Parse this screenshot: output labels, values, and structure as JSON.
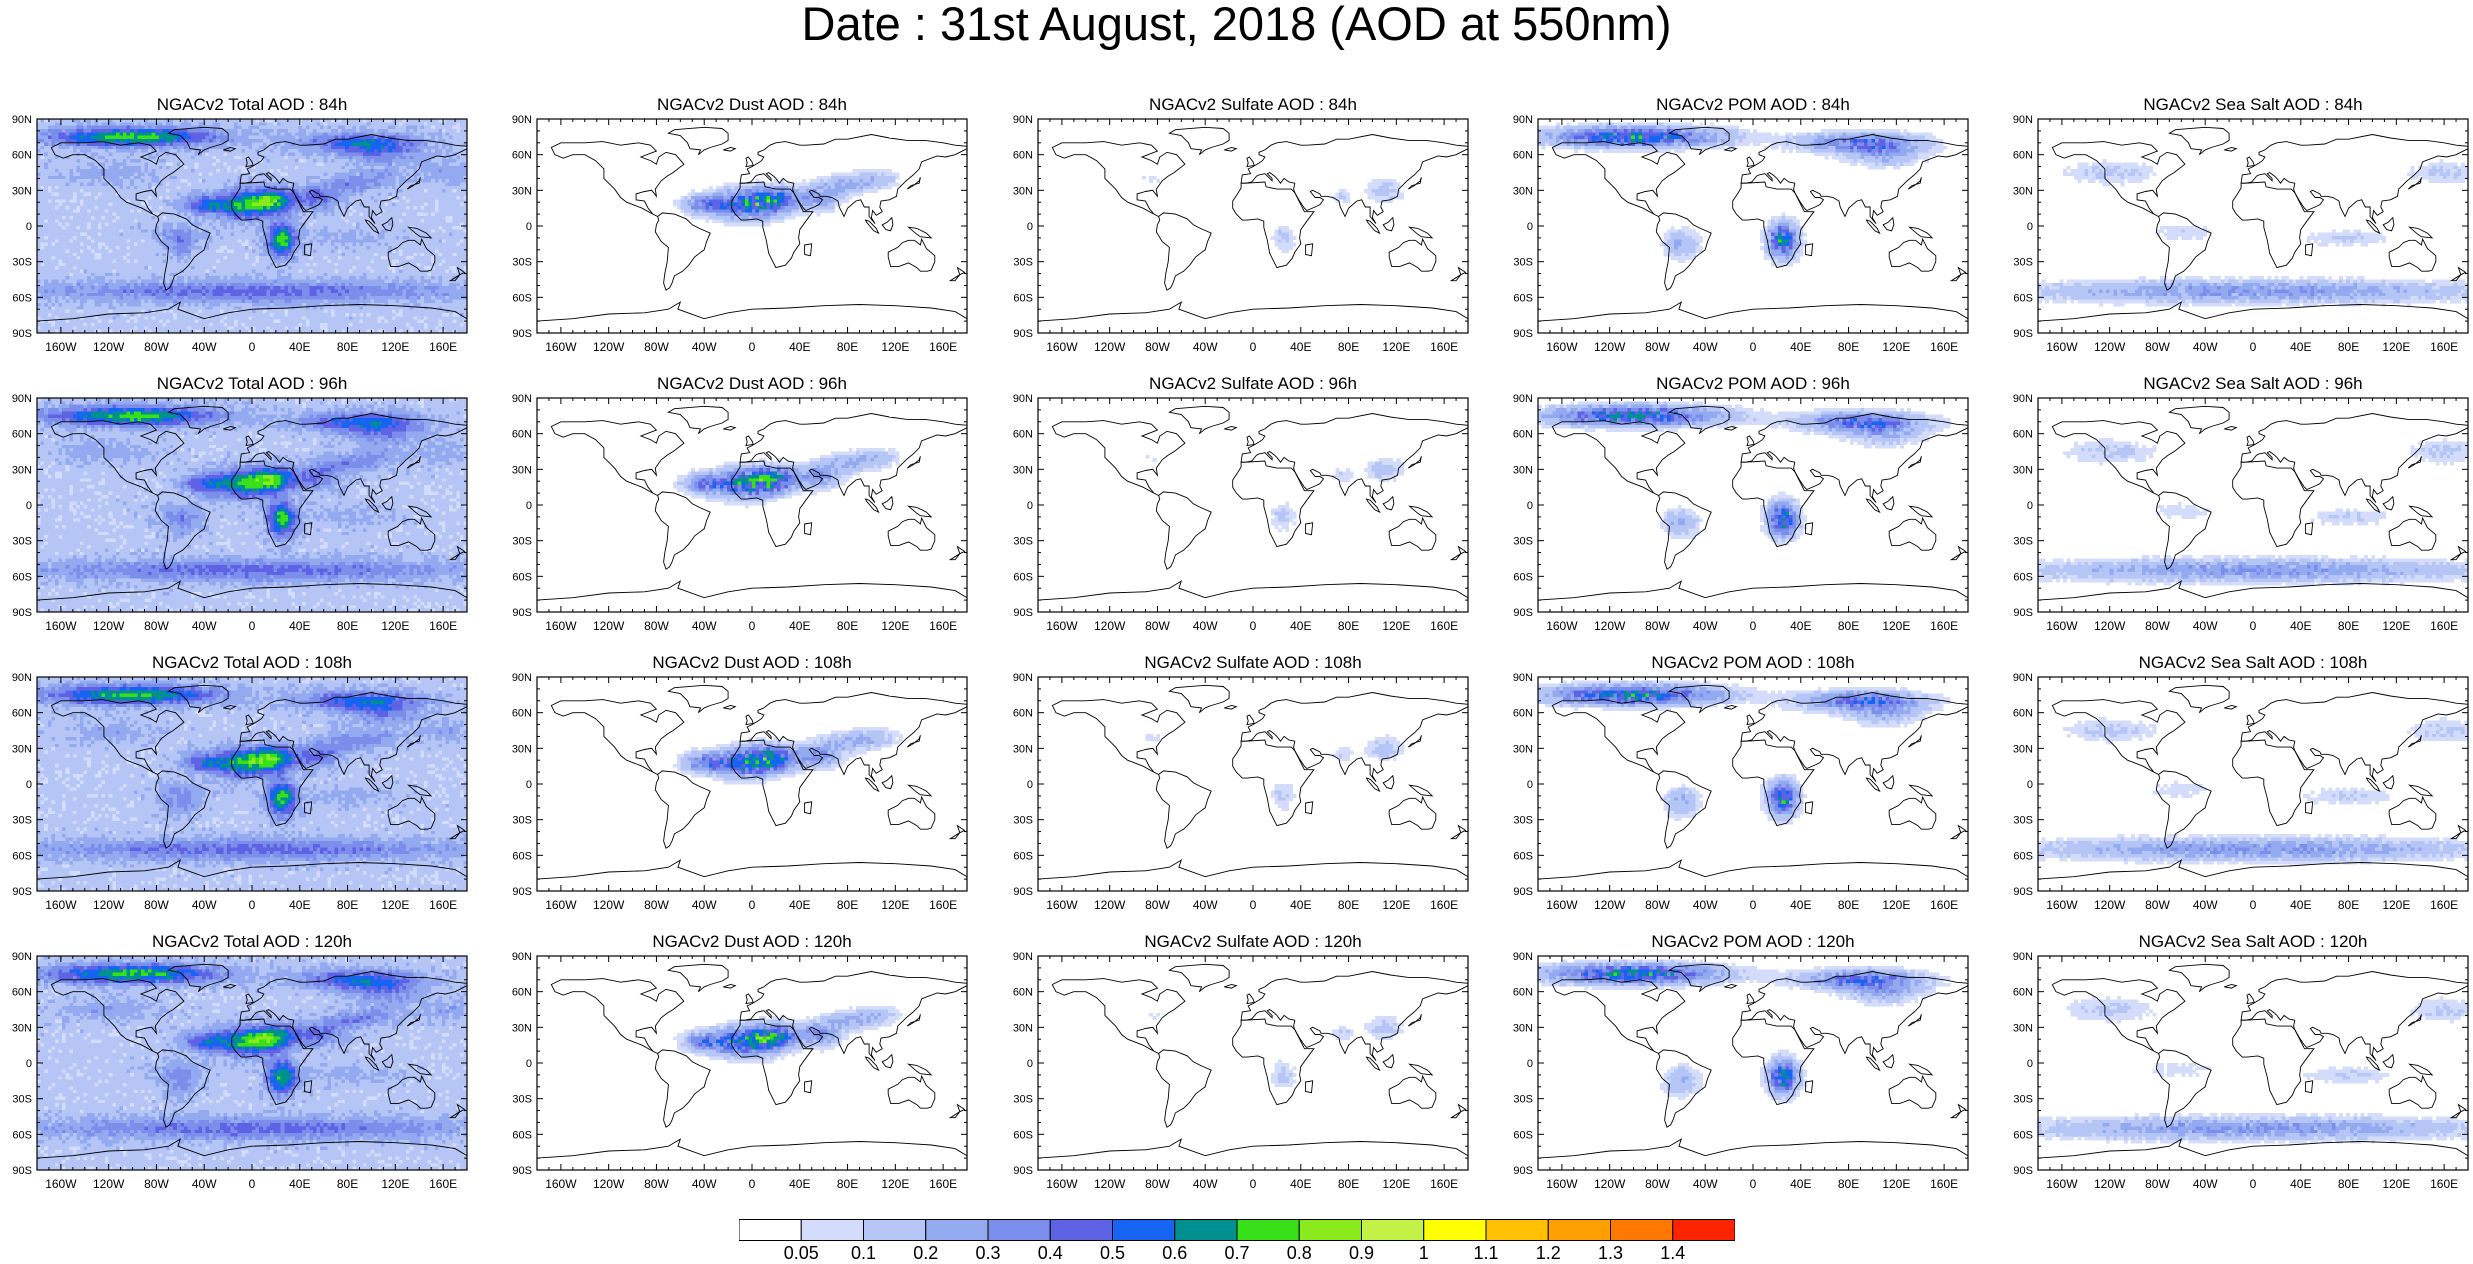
{
  "title": "Date : 31st August, 2018 (AOD at 550nm)",
  "axes": {
    "lat_labels": [
      "90N",
      "60N",
      "30N",
      "0",
      "30S",
      "60S",
      "90S"
    ],
    "lon_labels": [
      "160W",
      "120W",
      "80W",
      "40W",
      "0",
      "40E",
      "80E",
      "120E",
      "160E"
    ]
  },
  "panels": [
    {
      "title": "NGACv2 Total AOD : 84h",
      "species": "total"
    },
    {
      "title": "NGACv2 Dust AOD : 84h",
      "species": "dust"
    },
    {
      "title": "NGACv2 Sulfate AOD : 84h",
      "species": "sulfate"
    },
    {
      "title": "NGACv2 POM AOD : 84h",
      "species": "pom"
    },
    {
      "title": "NGACv2 Sea Salt AOD : 84h",
      "species": "seasalt"
    },
    {
      "title": "NGACv2 Total AOD : 96h",
      "species": "total"
    },
    {
      "title": "NGACv2 Dust AOD : 96h",
      "species": "dust"
    },
    {
      "title": "NGACv2 Sulfate AOD : 96h",
      "species": "sulfate"
    },
    {
      "title": "NGACv2 POM AOD : 96h",
      "species": "pom"
    },
    {
      "title": "NGACv2 Sea Salt AOD : 96h",
      "species": "seasalt"
    },
    {
      "title": "NGACv2 Total AOD : 108h",
      "species": "total"
    },
    {
      "title": "NGACv2 Dust AOD : 108h",
      "species": "dust"
    },
    {
      "title": "NGACv2 Sulfate AOD : 108h",
      "species": "sulfate"
    },
    {
      "title": "NGACv2 POM AOD : 108h",
      "species": "pom"
    },
    {
      "title": "NGACv2 Sea Salt AOD : 108h",
      "species": "seasalt"
    },
    {
      "title": "NGACv2 Total AOD : 120h",
      "species": "total"
    },
    {
      "title": "NGACv2 Dust AOD : 120h",
      "species": "dust"
    },
    {
      "title": "NGACv2 Sulfate AOD : 120h",
      "species": "sulfate"
    },
    {
      "title": "NGACv2 POM AOD : 120h",
      "species": "pom"
    },
    {
      "title": "NGACv2 Sea Salt  AOD : 120h",
      "species": "seasalt"
    }
  ],
  "colorbar": {
    "labels": [
      "0.05",
      "0.1",
      "0.2",
      "0.3",
      "0.4",
      "0.5",
      "0.6",
      "0.7",
      "0.8",
      "0.9",
      "1",
      "1.1",
      "1.2",
      "1.3",
      "1.4"
    ],
    "colors": [
      "#ffffff",
      "#d3ddfb",
      "#b4c5f6",
      "#93aaf0",
      "#7b8eeb",
      "#5e63e6",
      "#1565f2",
      "#00908f",
      "#38e01a",
      "#8bea1c",
      "#c3f146",
      "#ffff00",
      "#ffc000",
      "#ffa000",
      "#ff7800",
      "#ff2400"
    ]
  }
}
